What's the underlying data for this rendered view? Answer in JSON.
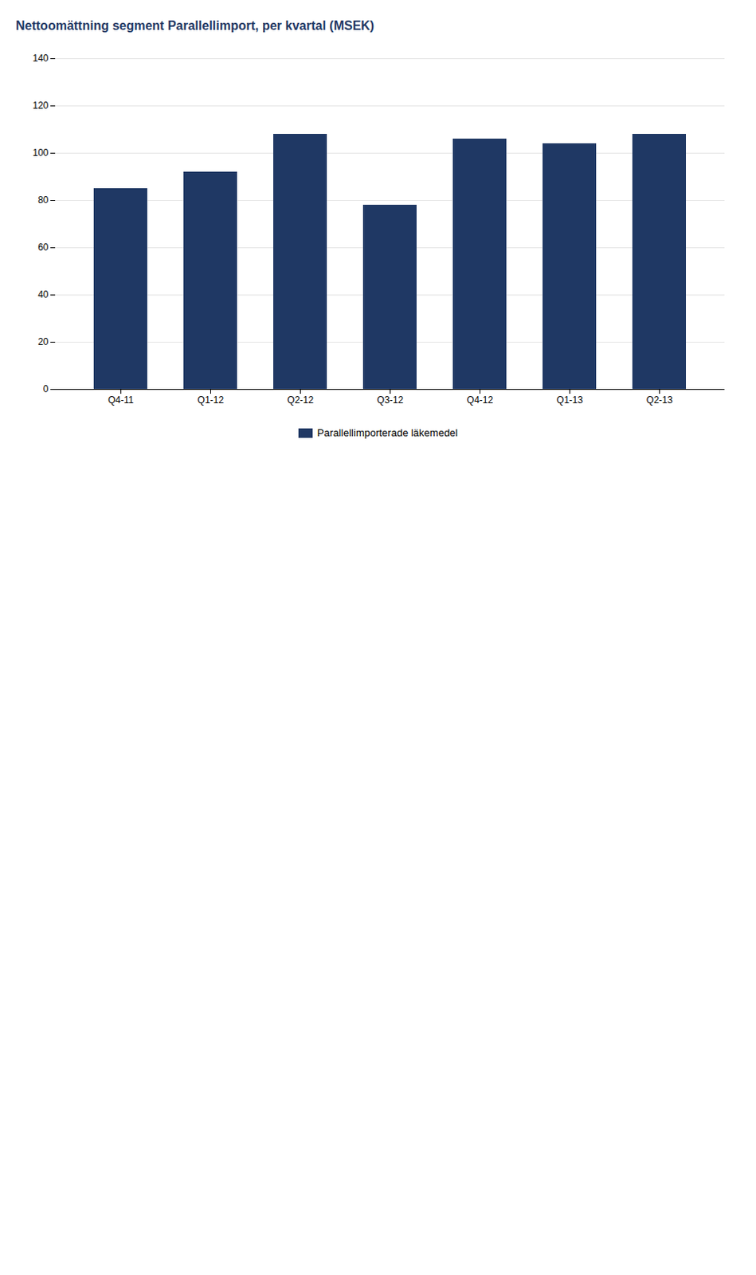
{
  "chart_data": {
    "type": "bar",
    "title": "Nettoomättning segment Parallellimport, per kvartal (MSEK)",
    "categories": [
      "Q4-11",
      "Q1-12",
      "Q2-12",
      "Q3-12",
      "Q4-12",
      "Q1-13",
      "Q2-13"
    ],
    "series": [
      {
        "name": "Parallellimporterade läkemedel",
        "color": "#1f3864",
        "values": [
          85,
          92,
          108,
          78,
          106,
          104,
          108
        ]
      }
    ],
    "ylim": [
      0,
      140
    ],
    "yticks": [
      0,
      20,
      40,
      60,
      80,
      100,
      120,
      140
    ],
    "grid": true,
    "legend": "bottom"
  }
}
